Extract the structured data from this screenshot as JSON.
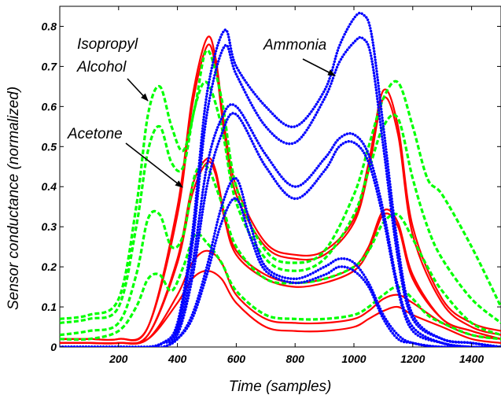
{
  "chart_data": {
    "type": "line",
    "title": "",
    "xlabel": "Time (samples)",
    "ylabel": "Sensor conductance (normalized)",
    "xlim": [
      0,
      1500
    ],
    "ylim": [
      0,
      0.85
    ],
    "xticks": [
      200,
      400,
      600,
      800,
      1000,
      1200,
      1400
    ],
    "yticks": [
      0,
      0.1,
      0.2,
      0.3,
      0.4,
      0.5,
      0.6,
      0.7,
      0.8
    ],
    "ytick_labels": [
      "0",
      "0.1",
      "0.2",
      "0.3",
      "0.4",
      "0.5",
      "0.6",
      "0.7",
      "0.8"
    ],
    "grid": false,
    "annotations": [
      {
        "text": "Isopropyl",
        "color": "#000000"
      },
      {
        "text": "Alcohol",
        "color": "#000000"
      },
      {
        "text": "Ammonia",
        "color": "#000000"
      },
      {
        "text": "Acetone",
        "color": "#000000"
      }
    ],
    "groups": [
      {
        "color": "#ff0000",
        "style": "solid",
        "series": [
          {
            "x": [
              0,
              100,
              200,
              300,
              400,
              450,
              500,
              530,
              560,
              600,
              700,
              800,
              900,
              1000,
              1050,
              1100,
              1150,
              1200,
              1300,
              1400,
              1500
            ],
            "y": [
              0.02,
              0.02,
              0.02,
              0.05,
              0.35,
              0.62,
              0.77,
              0.72,
              0.55,
              0.4,
              0.26,
              0.23,
              0.24,
              0.32,
              0.46,
              0.64,
              0.55,
              0.3,
              0.12,
              0.06,
              0.04
            ]
          },
          {
            "x": [
              0,
              100,
              200,
              300,
              400,
              450,
              500,
              530,
              560,
              600,
              700,
              800,
              900,
              1000,
              1050,
              1100,
              1150,
              1200,
              1300,
              1400,
              1500
            ],
            "y": [
              0.02,
              0.02,
              0.02,
              0.05,
              0.33,
              0.6,
              0.75,
              0.7,
              0.53,
              0.38,
              0.25,
              0.22,
              0.23,
              0.31,
              0.44,
              0.62,
              0.53,
              0.28,
              0.11,
              0.05,
              0.03
            ]
          },
          {
            "x": [
              0,
              100,
              200,
              300,
              400,
              450,
              500,
              530,
              560,
              600,
              700,
              800,
              900,
              1000,
              1050,
              1100,
              1150,
              1200,
              1300,
              1400,
              1500
            ],
            "y": [
              0.01,
              0.01,
              0.01,
              0.03,
              0.22,
              0.4,
              0.47,
              0.44,
              0.33,
              0.24,
              0.18,
              0.16,
              0.17,
              0.2,
              0.25,
              0.34,
              0.31,
              0.18,
              0.07,
              0.04,
              0.02
            ]
          },
          {
            "x": [
              0,
              100,
              200,
              300,
              400,
              450,
              500,
              530,
              560,
              600,
              700,
              800,
              900,
              1000,
              1050,
              1100,
              1150,
              1200,
              1300,
              1400,
              1500
            ],
            "y": [
              0.01,
              0.01,
              0.01,
              0.03,
              0.21,
              0.38,
              0.46,
              0.43,
              0.32,
              0.23,
              0.17,
              0.15,
              0.16,
              0.19,
              0.24,
              0.33,
              0.3,
              0.17,
              0.07,
              0.04,
              0.02
            ]
          },
          {
            "x": [
              0,
              100,
              200,
              300,
              400,
              450,
              500,
              550,
              600,
              700,
              800,
              900,
              1000,
              1050,
              1100,
              1150,
              1200,
              1300,
              1400,
              1500
            ],
            "y": [
              0.01,
              0.01,
              0.01,
              0.02,
              0.13,
              0.21,
              0.24,
              0.21,
              0.13,
              0.07,
              0.06,
              0.06,
              0.07,
              0.09,
              0.12,
              0.13,
              0.11,
              0.06,
              0.03,
              0.02
            ]
          },
          {
            "x": [
              0,
              100,
              200,
              300,
              400,
              450,
              500,
              550,
              600,
              700,
              800,
              900,
              1000,
              1050,
              1100,
              1150,
              1200,
              1300,
              1400,
              1500
            ],
            "y": [
              0.01,
              0.01,
              0.01,
              0.02,
              0.11,
              0.17,
              0.19,
              0.17,
              0.11,
              0.05,
              0.04,
              0.04,
              0.05,
              0.07,
              0.09,
              0.1,
              0.08,
              0.05,
              0.02,
              0.01
            ]
          }
        ]
      },
      {
        "color": "#00ff00",
        "style": "dashed",
        "series": [
          {
            "x": [
              0,
              100,
              200,
              260,
              300,
              340,
              380,
              420,
              460,
              500,
              550,
              600,
              700,
              800,
              900,
              1000,
              1050,
              1100,
              1150,
              1200,
              1250,
              1300,
              1400,
              1500
            ],
            "y": [
              0.07,
              0.08,
              0.12,
              0.35,
              0.58,
              0.65,
              0.55,
              0.49,
              0.6,
              0.74,
              0.62,
              0.4,
              0.24,
              0.21,
              0.24,
              0.38,
              0.5,
              0.62,
              0.66,
              0.55,
              0.42,
              0.38,
              0.25,
              0.1
            ]
          },
          {
            "x": [
              0,
              100,
              200,
              260,
              300,
              340,
              380,
              420,
              460,
              500,
              550,
              600,
              700,
              800,
              900,
              1000,
              1050,
              1100,
              1150,
              1200,
              1250,
              1300,
              1400,
              1500
            ],
            "y": [
              0.06,
              0.07,
              0.1,
              0.3,
              0.49,
              0.55,
              0.46,
              0.45,
              0.6,
              0.66,
              0.55,
              0.36,
              0.22,
              0.19,
              0.22,
              0.33,
              0.44,
              0.55,
              0.57,
              0.42,
              0.3,
              0.22,
              0.12,
              0.06
            ]
          },
          {
            "x": [
              0,
              100,
              200,
              260,
              300,
              340,
              380,
              420,
              460,
              500,
              550,
              600,
              700,
              800,
              900,
              1000,
              1050,
              1100,
              1150,
              1200,
              1250,
              1300,
              1400,
              1500
            ],
            "y": [
              0.03,
              0.04,
              0.06,
              0.18,
              0.32,
              0.33,
              0.25,
              0.28,
              0.43,
              0.45,
              0.36,
              0.25,
              0.17,
              0.16,
              0.17,
              0.2,
              0.24,
              0.31,
              0.33,
              0.27,
              0.2,
              0.14,
              0.06,
              0.03
            ]
          },
          {
            "x": [
              0,
              100,
              200,
              260,
              300,
              340,
              380,
              420,
              460,
              500,
              550,
              600,
              700,
              800,
              900,
              1000,
              1050,
              1100,
              1150,
              1200,
              1250,
              1300,
              1400,
              1500
            ],
            "y": [
              0.02,
              0.02,
              0.04,
              0.1,
              0.17,
              0.18,
              0.14,
              0.2,
              0.28,
              0.26,
              0.21,
              0.14,
              0.08,
              0.07,
              0.07,
              0.08,
              0.1,
              0.13,
              0.15,
              0.12,
              0.08,
              0.06,
              0.03,
              0.02
            ]
          }
        ]
      },
      {
        "color": "#0000ff",
        "style": "dotted",
        "series": [
          {
            "x": [
              0,
              200,
              300,
              350,
              400,
              450,
              500,
              560,
              600,
              700,
              800,
              900,
              950,
              1000,
              1030,
              1060,
              1100,
              1150,
              1200,
              1300,
              1400,
              1500
            ],
            "y": [
              0.0,
              0.0,
              0.0,
              0.01,
              0.06,
              0.28,
              0.63,
              0.79,
              0.7,
              0.6,
              0.55,
              0.64,
              0.75,
              0.82,
              0.83,
              0.78,
              0.55,
              0.25,
              0.08,
              0.02,
              0.01,
              0.0
            ]
          },
          {
            "x": [
              0,
              200,
              300,
              350,
              400,
              450,
              500,
              560,
              600,
              700,
              800,
              900,
              950,
              1000,
              1030,
              1060,
              1100,
              1150,
              1200,
              1300,
              1400,
              1500
            ],
            "y": [
              0.0,
              0.0,
              0.0,
              0.01,
              0.05,
              0.25,
              0.58,
              0.75,
              0.68,
              0.55,
              0.51,
              0.62,
              0.71,
              0.76,
              0.77,
              0.72,
              0.5,
              0.22,
              0.07,
              0.02,
              0.01,
              0.0
            ]
          },
          {
            "x": [
              0,
              200,
              300,
              350,
              400,
              450,
              500,
              550,
              600,
              700,
              800,
              900,
              950,
              1000,
              1050,
              1100,
              1150,
              1200,
              1300,
              1400,
              1500
            ],
            "y": [
              0.0,
              0.0,
              0.0,
              0.01,
              0.04,
              0.2,
              0.45,
              0.57,
              0.6,
              0.48,
              0.4,
              0.47,
              0.52,
              0.53,
              0.48,
              0.34,
              0.15,
              0.05,
              0.01,
              0.0,
              0.0
            ]
          },
          {
            "x": [
              0,
              200,
              300,
              350,
              400,
              450,
              500,
              550,
              600,
              700,
              800,
              900,
              950,
              1000,
              1050,
              1100,
              1150,
              1200,
              1300,
              1400,
              1500
            ],
            "y": [
              0.0,
              0.0,
              0.0,
              0.01,
              0.03,
              0.17,
              0.4,
              0.53,
              0.58,
              0.45,
              0.37,
              0.44,
              0.5,
              0.51,
              0.46,
              0.32,
              0.14,
              0.04,
              0.01,
              0.0,
              0.0
            ]
          },
          {
            "x": [
              0,
              200,
              300,
              350,
              400,
              450,
              500,
              550,
              600,
              650,
              700,
              800,
              900,
              950,
              1000,
              1050,
              1100,
              1150,
              1200,
              1300,
              1500
            ],
            "y": [
              0.0,
              0.0,
              0.0,
              0.0,
              0.02,
              0.08,
              0.2,
              0.35,
              0.42,
              0.3,
              0.2,
              0.17,
              0.2,
              0.22,
              0.21,
              0.16,
              0.08,
              0.03,
              0.01,
              0.0,
              0.0
            ]
          },
          {
            "x": [
              0,
              200,
              300,
              350,
              400,
              450,
              500,
              550,
              600,
              650,
              700,
              800,
              900,
              950,
              1000,
              1050,
              1100,
              1150,
              1200,
              1300,
              1500
            ],
            "y": [
              0.0,
              0.0,
              0.0,
              0.0,
              0.02,
              0.07,
              0.18,
              0.31,
              0.37,
              0.27,
              0.19,
              0.16,
              0.18,
              0.2,
              0.19,
              0.15,
              0.07,
              0.02,
              0.01,
              0.0,
              0.0
            ]
          }
        ]
      }
    ]
  }
}
